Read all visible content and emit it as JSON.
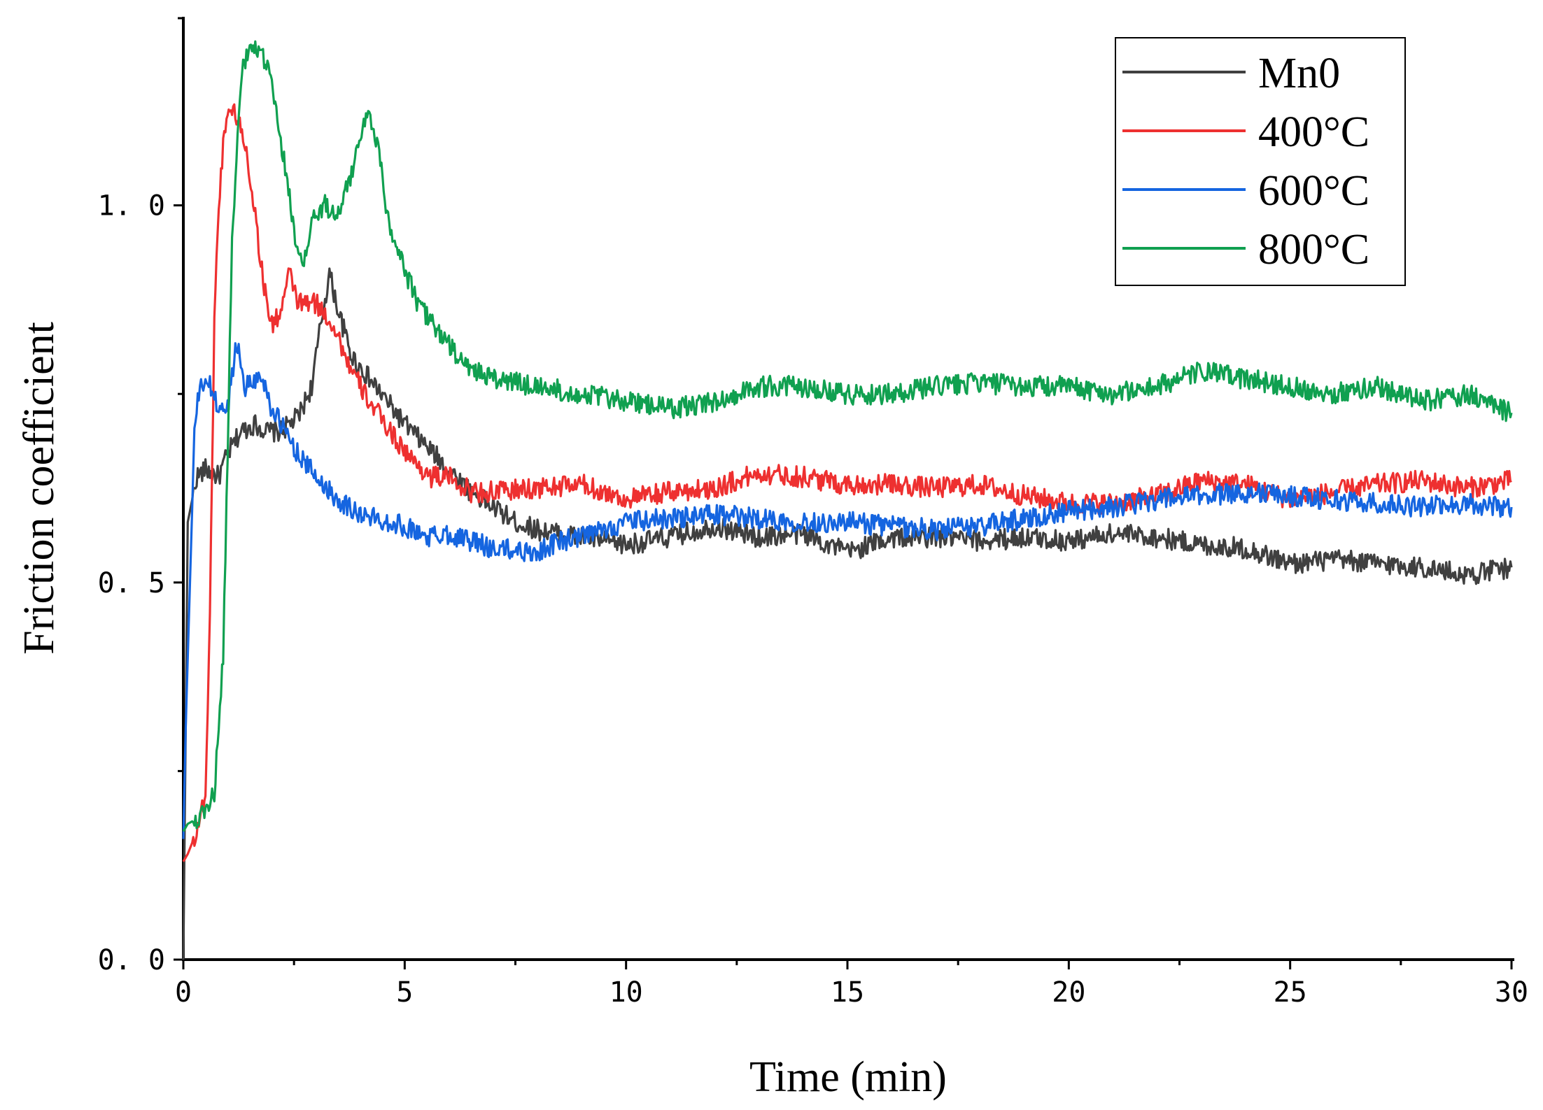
{
  "chart_data": {
    "type": "line",
    "title": "",
    "xlabel": "Time (min)",
    "ylabel": "Friction coefficient",
    "xlim": [
      0,
      30
    ],
    "ylim": [
      0,
      1.25
    ],
    "xticks": [
      0,
      5,
      10,
      15,
      20,
      25,
      30
    ],
    "xtick_labels": [
      "0",
      "5",
      "10",
      "15",
      "20",
      "25",
      "30"
    ],
    "yticks": [
      0.0,
      0.5,
      1.0
    ],
    "ytick_labels": [
      "0. 0",
      "0. 5",
      "1. 0"
    ],
    "grid": false,
    "legend_position": "top-right",
    "series": [
      {
        "name": "Mn0",
        "color": "#404040",
        "x": [
          0,
          0.1,
          0.3,
          0.5,
          0.8,
          1.0,
          1.3,
          1.6,
          1.9,
          2.2,
          2.6,
          2.9,
          3.1,
          3.3,
          3.5,
          3.8,
          4.2,
          4.6,
          5.0,
          5.5,
          6.0,
          6.5,
          7.0,
          7.5,
          8.0,
          9.0,
          10,
          11,
          12,
          13,
          14,
          15,
          16,
          17,
          18,
          19,
          20,
          21,
          22,
          23,
          24,
          25,
          26,
          27,
          28,
          29,
          30
        ],
        "y": [
          0.0,
          0.58,
          0.64,
          0.65,
          0.64,
          0.67,
          0.7,
          0.71,
          0.7,
          0.7,
          0.72,
          0.76,
          0.84,
          0.91,
          0.86,
          0.8,
          0.77,
          0.74,
          0.71,
          0.68,
          0.65,
          0.62,
          0.6,
          0.58,
          0.57,
          0.56,
          0.55,
          0.56,
          0.575,
          0.56,
          0.565,
          0.54,
          0.56,
          0.56,
          0.555,
          0.56,
          0.555,
          0.565,
          0.56,
          0.55,
          0.545,
          0.525,
          0.53,
          0.525,
          0.52,
          0.51,
          0.52
        ]
      },
      {
        "name": "400°C",
        "color": "#ee3030",
        "x": [
          0,
          0.1,
          0.3,
          0.5,
          0.6,
          0.7,
          0.8,
          0.9,
          1.0,
          1.2,
          1.4,
          1.6,
          1.8,
          2.0,
          2.2,
          2.4,
          2.6,
          3.0,
          3.4,
          3.8,
          4.2,
          4.8,
          5.2,
          5.6,
          6.0,
          6.5,
          7.0,
          8.0,
          9.0,
          10,
          11,
          12,
          13,
          14,
          15,
          16,
          17,
          18,
          19,
          20,
          21,
          22,
          23,
          24,
          25,
          26,
          27,
          28,
          29,
          30
        ],
        "y": [
          0.13,
          0.14,
          0.17,
          0.22,
          0.45,
          0.85,
          1.0,
          1.08,
          1.13,
          1.12,
          1.08,
          1.0,
          0.9,
          0.84,
          0.86,
          0.91,
          0.87,
          0.87,
          0.84,
          0.78,
          0.74,
          0.69,
          0.66,
          0.64,
          0.64,
          0.62,
          0.62,
          0.625,
          0.63,
          0.61,
          0.62,
          0.625,
          0.645,
          0.64,
          0.63,
          0.63,
          0.625,
          0.63,
          0.615,
          0.605,
          0.605,
          0.615,
          0.635,
          0.63,
          0.61,
          0.62,
          0.63,
          0.635,
          0.625,
          0.635
        ]
      },
      {
        "name": "600°C",
        "color": "#1565e0",
        "x": [
          0,
          0.05,
          0.15,
          0.25,
          0.35,
          0.5,
          0.6,
          0.8,
          1.0,
          1.2,
          1.4,
          1.6,
          1.8,
          2.0,
          2.3,
          2.6,
          3.0,
          3.5,
          4.0,
          5.0,
          5.5,
          6.0,
          7.0,
          8.0,
          8.5,
          9.0,
          10,
          11,
          12,
          13,
          14,
          15,
          16,
          17,
          18,
          19,
          20,
          21,
          22,
          23,
          24,
          25,
          26,
          27,
          28,
          29,
          30
        ],
        "y": [
          0.16,
          0.3,
          0.5,
          0.7,
          0.75,
          0.77,
          0.76,
          0.73,
          0.73,
          0.82,
          0.76,
          0.77,
          0.77,
          0.73,
          0.7,
          0.67,
          0.64,
          0.61,
          0.59,
          0.575,
          0.56,
          0.565,
          0.545,
          0.54,
          0.555,
          0.56,
          0.58,
          0.585,
          0.59,
          0.585,
          0.58,
          0.58,
          0.575,
          0.57,
          0.575,
          0.585,
          0.595,
          0.6,
          0.61,
          0.615,
          0.62,
          0.615,
          0.61,
          0.605,
          0.6,
          0.605,
          0.6
        ]
      },
      {
        "name": "800°C",
        "color": "#10a050",
        "x": [
          0,
          0.1,
          0.4,
          0.7,
          0.9,
          1.1,
          1.3,
          1.5,
          1.7,
          1.9,
          2.1,
          2.3,
          2.5,
          2.7,
          2.9,
          3.2,
          3.5,
          3.8,
          4.0,
          4.2,
          4.4,
          4.6,
          4.9,
          5.3,
          5.8,
          6.3,
          7.0,
          8.0,
          9.0,
          10,
          11,
          12,
          13,
          14,
          15,
          16,
          17,
          18,
          19,
          20,
          21,
          22,
          23,
          24,
          25,
          26,
          27,
          28,
          29,
          30
        ],
        "y": [
          0.17,
          0.18,
          0.19,
          0.22,
          0.4,
          0.95,
          1.17,
          1.21,
          1.2,
          1.19,
          1.12,
          1.05,
          0.97,
          0.91,
          0.98,
          1.0,
          0.99,
          1.04,
          1.1,
          1.12,
          1.08,
          0.99,
          0.93,
          0.87,
          0.83,
          0.79,
          0.77,
          0.76,
          0.75,
          0.74,
          0.73,
          0.74,
          0.76,
          0.76,
          0.75,
          0.75,
          0.76,
          0.765,
          0.76,
          0.76,
          0.75,
          0.76,
          0.78,
          0.77,
          0.76,
          0.75,
          0.76,
          0.74,
          0.75,
          0.725
        ]
      }
    ]
  }
}
